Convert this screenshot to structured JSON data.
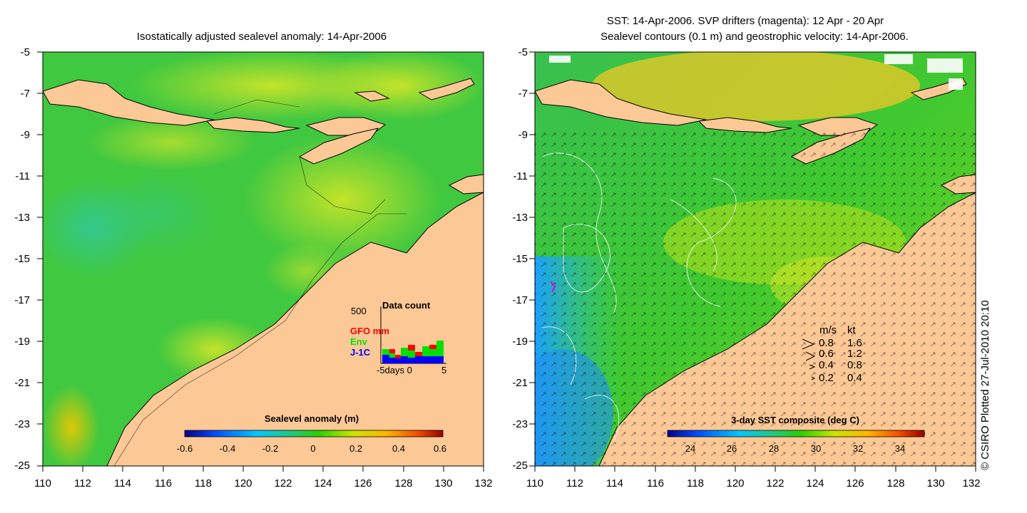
{
  "left_panel": {
    "title": "Isostatically adjusted sealevel anomaly: 14-Apr-2006",
    "y_ticks": [
      "-5",
      "-7",
      "-9",
      "-11",
      "-13",
      "-15",
      "-17",
      "-19",
      "-21",
      "-23",
      "-25"
    ],
    "x_ticks": [
      "110",
      "112",
      "114",
      "116",
      "118",
      "120",
      "122",
      "124",
      "126",
      "128",
      "130",
      "132"
    ],
    "colorbar": {
      "label": "Sealevel anomaly (m)",
      "ticks": [
        "-0.6",
        "-0.4",
        "-0.2",
        "0",
        "0.2",
        "0.4",
        "0.6"
      ]
    },
    "data_count": {
      "title": "Data count",
      "max_label": "500",
      "legend": [
        {
          "name": "GFO mm",
          "color": "#ff0000"
        },
        {
          "name": "Env",
          "color": "#00e000"
        },
        {
          "name": "J-1C",
          "color": "#0000ff"
        }
      ],
      "x_axis_label": "-5days 0",
      "x_axis_end": "5"
    }
  },
  "right_panel": {
    "title_line1": "SST: 14-Apr-2006. SVP drifters (magenta): 12 Apr - 20 Apr",
    "title_line2": "Sealevel contours (0.1 m) and geostrophic velocity: 14-Apr-2006.",
    "y_ticks": [
      "-5",
      "-7",
      "-9",
      "-11",
      "-13",
      "-15",
      "-17",
      "-19",
      "-21",
      "-23",
      "-25"
    ],
    "x_ticks": [
      "110",
      "112",
      "114",
      "116",
      "118",
      "120",
      "122",
      "124",
      "126",
      "128",
      "130",
      "132"
    ],
    "colorbar": {
      "label": "3-day SST composite (deg C)",
      "ticks": [
        "24",
        "26",
        "28",
        "30",
        "32",
        "34"
      ]
    },
    "velocity_legend": {
      "header_ms": "m/s",
      "header_kt": "kt",
      "rows": [
        {
          "ms": "0.8",
          "kt": "1.6"
        },
        {
          "ms": "0.6",
          "kt": "1.2"
        },
        {
          "ms": "0.4",
          "kt": "0.8"
        },
        {
          "ms": "0.2",
          "kt": "0.4"
        }
      ]
    }
  },
  "credit": "© CSIRO Plotted 27-Jul-2010 20:10",
  "colors": {
    "land": "#fcc896",
    "sea_green": "#40c840",
    "sea_yellow": "#c8e628"
  }
}
